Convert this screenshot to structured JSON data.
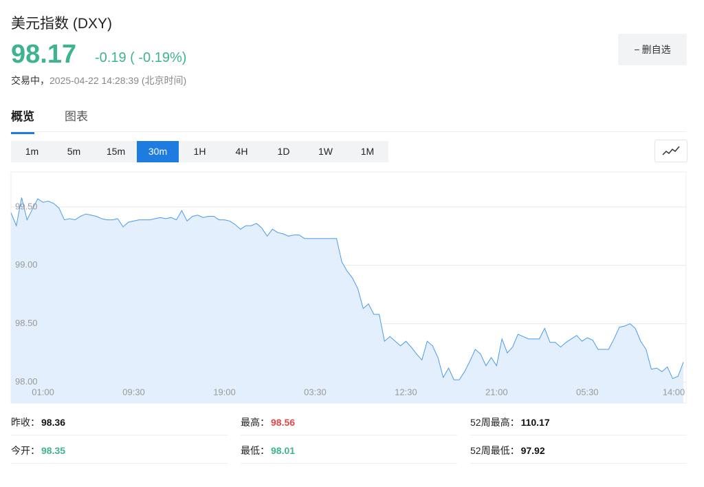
{
  "header": {
    "title": "美元指数 (DXY)",
    "price": "98.17",
    "change": "-0.19",
    "change_pct": "( -0.19%)",
    "status": "交易中，",
    "time": "2025-04-22 14:28:39",
    "timezone": "(北京时间)",
    "button": "删自选"
  },
  "tabs": [
    "概览",
    "图表"
  ],
  "timeframes": [
    "1m",
    "5m",
    "15m",
    "30m",
    "1H",
    "4H",
    "1D",
    "1W",
    "1M"
  ],
  "stats": [
    {
      "label": "昨收：",
      "value": "98.36",
      "color": "#111111"
    },
    {
      "label": "最高：",
      "value": "98.56",
      "color": "#e54545"
    },
    {
      "label": "52周最高：",
      "value": "110.17",
      "color": "#111111"
    },
    {
      "label": "今开：",
      "value": "98.35",
      "color": "#3db38e"
    },
    {
      "label": "最低：",
      "value": "98.01",
      "color": "#3db38e"
    },
    {
      "label": "52周最低：",
      "value": "97.92",
      "color": "#111111"
    }
  ],
  "chart_data": {
    "type": "line",
    "color": "#4a9be8",
    "fill": "#e3effc",
    "grid": true,
    "ylim": [
      97.82,
      99.8
    ],
    "yticks": [
      {
        "value": 98,
        "label": "98.00"
      },
      {
        "value": 98.5,
        "label": "98.50"
      },
      {
        "value": 99,
        "label": "99.00"
      },
      {
        "value": 99.5,
        "label": "99.50"
      }
    ],
    "categories": [
      null,
      null,
      null,
      null,
      null,
      null,
      "01:00",
      null,
      null,
      null,
      null,
      null,
      null,
      null,
      null,
      null,
      null,
      null,
      null,
      null,
      null,
      null,
      null,
      "09:30",
      null,
      null,
      null,
      null,
      null,
      null,
      null,
      null,
      null,
      null,
      null,
      null,
      null,
      null,
      null,
      null,
      "19:00",
      null,
      null,
      null,
      null,
      null,
      null,
      null,
      null,
      null,
      null,
      null,
      null,
      null,
      null,
      null,
      null,
      "03:30",
      null,
      null,
      null,
      null,
      null,
      null,
      null,
      null,
      null,
      null,
      null,
      null,
      null,
      null,
      null,
      null,
      "12:30",
      null,
      null,
      null,
      null,
      null,
      null,
      null,
      null,
      null,
      null,
      null,
      null,
      null,
      null,
      null,
      null,
      "21:00",
      null,
      null,
      null,
      null,
      null,
      null,
      null,
      null,
      null,
      null,
      null,
      null,
      null,
      null,
      null,
      null,
      "05:30",
      null,
      null,
      null,
      null,
      null,
      null,
      null,
      null,
      null,
      null,
      null,
      null,
      null,
      null,
      null,
      null,
      "14:00",
      null
    ],
    "values": [
      99.45,
      99.34,
      99.58,
      99.39,
      99.48,
      99.57,
      99.54,
      99.55,
      99.53,
      99.49,
      99.39,
      99.4,
      99.39,
      99.42,
      99.44,
      99.43,
      99.42,
      99.4,
      99.39,
      99.39,
      99.4,
      99.33,
      99.37,
      99.38,
      99.39,
      99.39,
      99.39,
      99.4,
      99.41,
      99.4,
      99.41,
      99.39,
      99.47,
      99.38,
      99.42,
      99.43,
      99.41,
      99.42,
      99.42,
      99.39,
      99.39,
      99.38,
      99.35,
      99.31,
      99.34,
      99.34,
      99.36,
      99.32,
      99.25,
      99.31,
      99.28,
      99.27,
      99.25,
      99.26,
      99.26,
      99.23,
      99.23,
      99.23,
      99.23,
      99.23,
      99.23,
      99.23,
      99.03,
      98.95,
      98.89,
      98.8,
      98.63,
      98.67,
      98.58,
      98.58,
      98.35,
      98.39,
      98.35,
      98.31,
      98.35,
      98.3,
      98.24,
      98.19,
      98.35,
      98.31,
      98.21,
      98.04,
      98.12,
      98.02,
      98.02,
      98.09,
      98.18,
      98.28,
      98.24,
      98.14,
      98.21,
      98.14,
      98.37,
      98.25,
      98.3,
      98.41,
      98.39,
      98.37,
      98.37,
      98.37,
      98.46,
      98.34,
      98.34,
      98.3,
      98.34,
      98.37,
      98.4,
      98.35,
      98.38,
      98.36,
      98.28,
      98.28,
      98.28,
      98.37,
      98.47,
      98.48,
      98.5,
      98.46,
      98.35,
      98.28,
      98.11,
      98.12,
      98.09,
      98.13,
      98.03,
      98.05,
      98.17
    ]
  }
}
